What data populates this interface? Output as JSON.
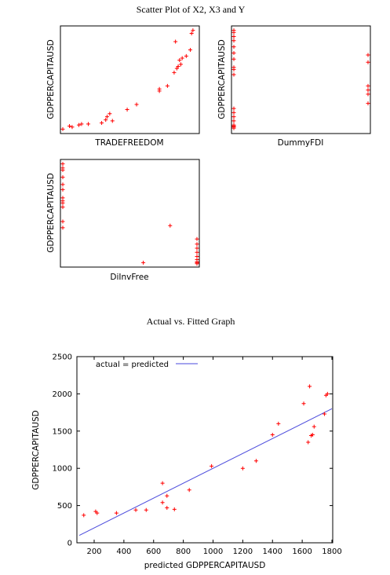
{
  "colors": {
    "marker": "#ff0000",
    "fit_line": "#4a4adc",
    "frame": "#000000",
    "background": "#ffffff"
  },
  "scatter_section": {
    "title": "Scatter Plot of X2, X3 and Y"
  },
  "fit_section": {
    "title": "Actual vs. Fitted Graph"
  },
  "chart_data": [
    {
      "type": "scatter",
      "xlabel": "TRADEFREEDOM",
      "ylabel": "GDPPERCAPITAUSD",
      "axis_ticks": false,
      "x": [
        0.0,
        0.05,
        0.07,
        0.12,
        0.14,
        0.19,
        0.29,
        0.32,
        0.33,
        0.37,
        0.35,
        0.48,
        0.55,
        0.72,
        0.72,
        0.78,
        0.83,
        0.85,
        0.86,
        0.88,
        0.87,
        0.89,
        0.92,
        0.95,
        0.96,
        0.97,
        0.84
      ],
      "y": [
        0.02,
        0.05,
        0.04,
        0.06,
        0.07,
        0.07,
        0.08,
        0.11,
        0.14,
        0.1,
        0.17,
        0.21,
        0.26,
        0.39,
        0.41,
        0.44,
        0.57,
        0.61,
        0.63,
        0.65,
        0.69,
        0.71,
        0.73,
        0.79,
        0.95,
        0.98,
        0.87
      ]
    },
    {
      "type": "scatter",
      "xlabel": "DummyFDI",
      "ylabel": "GDPPERCAPITAUSD",
      "axis_ticks": false,
      "x": [
        0,
        0,
        0,
        0,
        0,
        0,
        0,
        0,
        0,
        0,
        0,
        0,
        0,
        0,
        0,
        0,
        0,
        0,
        1,
        1,
        1,
        1,
        1,
        1
      ],
      "y": [
        0.98,
        0.96,
        0.92,
        0.88,
        0.82,
        0.76,
        0.7,
        0.62,
        0.6,
        0.55,
        0.22,
        0.18,
        0.14,
        0.1,
        0.06,
        0.05,
        0.04,
        0.03,
        0.74,
        0.67,
        0.44,
        0.4,
        0.36,
        0.27
      ]
    },
    {
      "type": "scatter",
      "xlabel": "DiInvFree",
      "ylabel": "GDPPERCAPITAUSD",
      "axis_ticks": false,
      "x": [
        0.0,
        0.0,
        0.0,
        0.0,
        0.0,
        0.0,
        0.0,
        0.0,
        0.0,
        0.0,
        0.0,
        0.0,
        0.6,
        0.8,
        1.0,
        1.0,
        1.0,
        1.0,
        1.0,
        1.0,
        1.0,
        1.0,
        1.0
      ],
      "y": [
        0.98,
        0.94,
        0.92,
        0.85,
        0.78,
        0.73,
        0.65,
        0.62,
        0.6,
        0.56,
        0.42,
        0.36,
        0.02,
        0.38,
        0.25,
        0.2,
        0.16,
        0.12,
        0.08,
        0.05,
        0.03,
        0.02,
        0.01
      ]
    },
    {
      "type": "scatter",
      "xlabel": "predicted GDPPERCAPITAUSD",
      "ylabel": "GDPPERCAPITAUSD",
      "xlim": [
        100,
        1800
      ],
      "ylim": [
        0,
        2500
      ],
      "xticks": [
        "200",
        "400",
        "600",
        "800",
        "1000",
        "1200",
        "1400",
        "1600",
        "1800"
      ],
      "yticks": [
        "0",
        "500",
        "1000",
        "1500",
        "2000",
        "2500"
      ],
      "legend_position": "top-left",
      "legend_label": "actual = predicted",
      "fit_line": [
        [
          100,
          100
        ],
        [
          1800,
          1800
        ]
      ],
      "x": [
        130,
        210,
        220,
        350,
        480,
        550,
        660,
        660,
        690,
        690,
        740,
        840,
        990,
        1200,
        1290,
        1400,
        1440,
        1610,
        1640,
        1650,
        1660,
        1670,
        1680,
        1750,
        1760,
        1770
      ],
      "y": [
        370,
        420,
        400,
        400,
        440,
        440,
        800,
        540,
        630,
        470,
        450,
        710,
        1030,
        1000,
        1100,
        1450,
        1600,
        1870,
        1350,
        2100,
        1440,
        1450,
        1560,
        1730,
        1980,
        2000
      ]
    }
  ]
}
